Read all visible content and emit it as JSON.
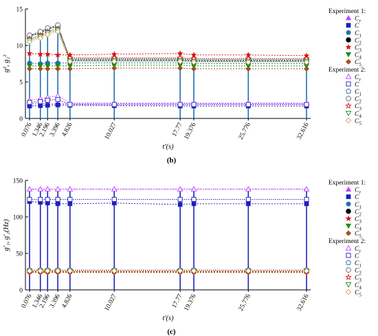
{
  "chart_data": [
    {
      "type": "line",
      "caption": "(b)",
      "ylabel": "g², g₂²",
      "xlabel": "t'(s)",
      "ylim": [
        0,
        15
      ],
      "yticks": [
        "0",
        "5",
        "10",
        "15"
      ],
      "xticks": [
        "0.076",
        "1.346",
        "2.196",
        "3.396",
        "4.826",
        "10.027",
        "17.77",
        "19.376",
        "25.776",
        "32.616"
      ],
      "x": [
        0.076,
        1.346,
        2.196,
        3.396,
        4.826,
        10.027,
        17.77,
        19.376,
        25.776,
        32.616
      ],
      "grid": false,
      "legend_position": "right",
      "legend_groups": [
        {
          "title": "Experiment 1:",
          "items": [
            "Cr",
            "C",
            "C1",
            "C2",
            "C3",
            "C4",
            "C5"
          ]
        },
        {
          "title": "Experiment 2:",
          "items": [
            "Cr",
            "C",
            "C1",
            "C2",
            "C3",
            "C4",
            "C5"
          ]
        }
      ],
      "series": [
        {
          "name": "Experiment 1: Cr",
          "color": "#c040ff",
          "marker": "triangle-up",
          "values": [
            2.0,
            2.0,
            2.0,
            2.0,
            2.0,
            2.0,
            2.0,
            2.0,
            2.0,
            2.0
          ]
        },
        {
          "name": "Experiment 1: C",
          "color": "#1f1fbf",
          "marker": "square",
          "values": [
            1.7,
            1.75,
            1.8,
            1.85,
            1.8,
            1.75,
            1.7,
            1.7,
            1.7,
            1.7
          ]
        },
        {
          "name": "Experiment 1: C1",
          "color": "#1f6fb0",
          "marker": "pentagon",
          "values": [
            7.6,
            7.5,
            7.6,
            7.6,
            7.6,
            7.6,
            7.6,
            7.5,
            7.5,
            7.5
          ]
        },
        {
          "name": "Experiment 1: C2",
          "color": "#000000",
          "marker": "circle",
          "values": [
            11.3,
            11.8,
            12.3,
            12.7,
            8.0,
            8.0,
            8.0,
            7.9,
            7.9,
            7.9
          ]
        },
        {
          "name": "Experiment 1: C3",
          "color": "#e01010",
          "marker": "star",
          "values": [
            8.9,
            8.8,
            8.8,
            8.7,
            8.7,
            8.8,
            8.9,
            8.7,
            8.7,
            8.6
          ]
        },
        {
          "name": "Experiment 1: C4",
          "color": "#10901a",
          "marker": "triangle-down",
          "values": [
            7.2,
            7.2,
            7.2,
            7.2,
            7.2,
            7.3,
            7.3,
            7.2,
            7.2,
            7.2
          ]
        },
        {
          "name": "Experiment 1: C5",
          "color": "#a0521d",
          "marker": "diamond",
          "values": [
            6.8,
            6.8,
            6.8,
            6.8,
            6.8,
            6.9,
            6.9,
            6.8,
            6.8,
            6.8
          ]
        },
        {
          "name": "Experiment 2: Cr",
          "color": "#c040ff",
          "marker": "triangle-up-open",
          "values": [
            2.5,
            2.7,
            2.9,
            3.1,
            2.1,
            2.1,
            2.1,
            2.1,
            2.1,
            2.1
          ]
        },
        {
          "name": "Experiment 2: C",
          "color": "#1f1fbf",
          "marker": "square-open",
          "values": [
            2.2,
            2.3,
            2.5,
            2.6,
            1.9,
            1.9,
            1.9,
            1.9,
            1.9,
            1.9
          ]
        },
        {
          "name": "Experiment 2: C1",
          "color": "#1f6fb0",
          "marker": "pentagon-open",
          "values": [
            11.2,
            11.7,
            12.2,
            12.6,
            8.2,
            8.2,
            8.2,
            8.1,
            8.1,
            8.1
          ]
        },
        {
          "name": "Experiment 2: C2",
          "color": "#666666",
          "marker": "circle-open",
          "values": [
            11.4,
            11.9,
            12.4,
            12.8,
            8.1,
            8.1,
            8.1,
            8.0,
            8.0,
            8.0
          ]
        },
        {
          "name": "Experiment 2: C3",
          "color": "#e01010",
          "marker": "star-open",
          "values": [
            10.9,
            11.4,
            11.9,
            12.3,
            8.3,
            8.3,
            8.3,
            8.2,
            8.2,
            8.2
          ]
        },
        {
          "name": "Experiment 2: C4",
          "color": "#10901a",
          "marker": "triangle-down-open",
          "values": [
            10.7,
            11.2,
            11.7,
            12.1,
            7.9,
            7.9,
            7.9,
            7.8,
            7.8,
            7.8
          ]
        },
        {
          "name": "Experiment 2: C5",
          "color": "#d0a060",
          "marker": "diamond-open",
          "values": [
            10.5,
            11.0,
            11.5,
            11.9,
            7.8,
            7.8,
            7.8,
            7.7,
            7.7,
            7.7
          ]
        }
      ]
    },
    {
      "type": "line",
      "caption": "(c)",
      "ylabel": "g'₁, g'₂(Hz)",
      "xlabel": "t'(s)",
      "ylim": [
        0,
        150
      ],
      "yticks": [
        "0",
        "50",
        "100",
        "150"
      ],
      "xticks": [
        "0.076",
        "1.346",
        "2.196",
        "3.396",
        "4.826",
        "10.027",
        "17.77",
        "19.376",
        "25.776",
        "32.616"
      ],
      "x": [
        0.076,
        1.346,
        2.196,
        3.396,
        4.826,
        10.027,
        17.77,
        19.376,
        25.776,
        32.616
      ],
      "grid": false,
      "legend_position": "right",
      "legend_groups": [
        {
          "title": "Experiment 1:",
          "items": [
            "Cr",
            "C",
            "C1",
            "C2",
            "C3",
            "C4",
            "C5"
          ]
        },
        {
          "title": "Experiment 2:",
          "items": [
            "Cr",
            "C",
            "C1",
            "C2",
            "C3",
            "C4",
            "C5"
          ]
        }
      ],
      "series": [
        {
          "name": "Experiment 1: Cr",
          "color": "#c040ff",
          "marker": "triangle-up",
          "values": [
            138,
            138,
            138,
            138,
            138,
            138,
            138,
            138,
            138,
            138
          ]
        },
        {
          "name": "Experiment 1: C",
          "color": "#1f1fbf",
          "marker": "square",
          "values": [
            121,
            120,
            119,
            118,
            118,
            119,
            117,
            118,
            118,
            118
          ]
        },
        {
          "name": "Experiment 1: C1",
          "color": "#1f6fb0",
          "marker": "pentagon",
          "values": [
            25,
            25,
            25,
            25,
            25,
            25,
            25,
            25,
            25,
            25
          ]
        },
        {
          "name": "Experiment 1: C2",
          "color": "#000000",
          "marker": "circle",
          "values": [
            25,
            25,
            25,
            25,
            25,
            25,
            25,
            25,
            25,
            25
          ]
        },
        {
          "name": "Experiment 1: C3",
          "color": "#e01010",
          "marker": "star",
          "values": [
            25,
            25,
            25,
            25,
            25,
            25,
            25,
            25,
            25,
            25
          ]
        },
        {
          "name": "Experiment 1: C4",
          "color": "#10901a",
          "marker": "triangle-down",
          "values": [
            24,
            24,
            24,
            24,
            24,
            24,
            24,
            24,
            24,
            24
          ]
        },
        {
          "name": "Experiment 1: C5",
          "color": "#a0521d",
          "marker": "diamond",
          "values": [
            24,
            24,
            24,
            24,
            24,
            24,
            24,
            24,
            24,
            24
          ]
        },
        {
          "name": "Experiment 2: Cr",
          "color": "#c040ff",
          "marker": "triangle-up-open",
          "values": [
            138,
            138,
            138,
            138,
            138,
            138,
            138,
            138,
            138,
            138
          ]
        },
        {
          "name": "Experiment 2: C",
          "color": "#1f1fbf",
          "marker": "square-open",
          "values": [
            124,
            124,
            124,
            124,
            124,
            124,
            124,
            124,
            124,
            124
          ]
        },
        {
          "name": "Experiment 2: C1",
          "color": "#1f6fb0",
          "marker": "pentagon-open",
          "values": [
            27,
            27,
            27,
            27,
            27,
            27,
            27,
            27,
            27,
            27
          ]
        },
        {
          "name": "Experiment 2: C2",
          "color": "#666666",
          "marker": "circle-open",
          "values": [
            27,
            27,
            27,
            27,
            27,
            27,
            27,
            27,
            27,
            27
          ]
        },
        {
          "name": "Experiment 2: C3",
          "color": "#e01010",
          "marker": "star-open",
          "values": [
            26,
            26,
            26,
            26,
            26,
            26,
            26,
            26,
            26,
            26
          ]
        },
        {
          "name": "Experiment 2: C4",
          "color": "#10901a",
          "marker": "triangle-down-open",
          "values": [
            26,
            26,
            26,
            26,
            26,
            26,
            26,
            26,
            26,
            26
          ]
        },
        {
          "name": "Experiment 2: C5",
          "color": "#d0a060",
          "marker": "diamond-open",
          "values": [
            26,
            26,
            26,
            26,
            26,
            26,
            26,
            26,
            26,
            26
          ]
        }
      ]
    }
  ]
}
